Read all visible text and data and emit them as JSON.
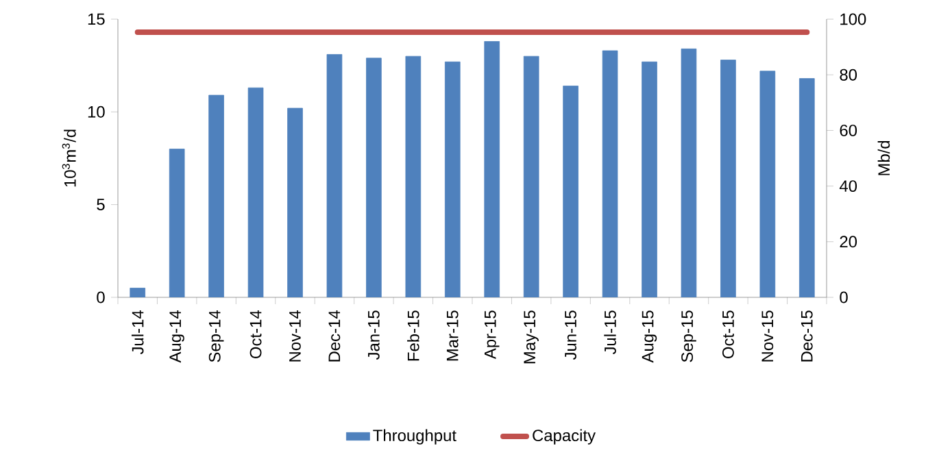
{
  "chart_data": {
    "type": "bar",
    "ylabel": "10$^{3}$m$^{3}$/d",
    "y2label": "Mb/d",
    "categories": [
      "Jul-14",
      "Aug-14",
      "Sep-14",
      "Oct-14",
      "Nov-14",
      "Dec-14",
      "Jan-15",
      "Feb-15",
      "Mar-15",
      "Apr-15",
      "May-15",
      "Jun-15",
      "Jul-15",
      "Aug-15",
      "Sep-15",
      "Oct-15",
      "Nov-15",
      "Dec-15"
    ],
    "series": [
      {
        "name": "Throughput",
        "color": "#4f81bd",
        "values": [
          0.5,
          8.0,
          10.9,
          11.3,
          10.2,
          13.1,
          12.9,
          13.0,
          12.7,
          13.8,
          13.0,
          11.4,
          13.3,
          12.7,
          13.4,
          12.8,
          12.2,
          11.8
        ]
      },
      {
        "name": "Capacity",
        "type": "line",
        "color": "#c0504d",
        "values": [
          14.3,
          14.3,
          14.3,
          14.3,
          14.3,
          14.3,
          14.3,
          14.3,
          14.3,
          14.3,
          14.3,
          14.3,
          14.3,
          14.3,
          14.3,
          14.3,
          14.3,
          14.3
        ]
      }
    ],
    "ylim": [
      0,
      15
    ],
    "yticks": [
      0,
      5,
      10,
      15
    ],
    "y2lim": [
      0,
      100
    ],
    "y2ticks": [
      0,
      20,
      40,
      60,
      80,
      100
    ],
    "legend": "bottom",
    "marker": "none"
  }
}
